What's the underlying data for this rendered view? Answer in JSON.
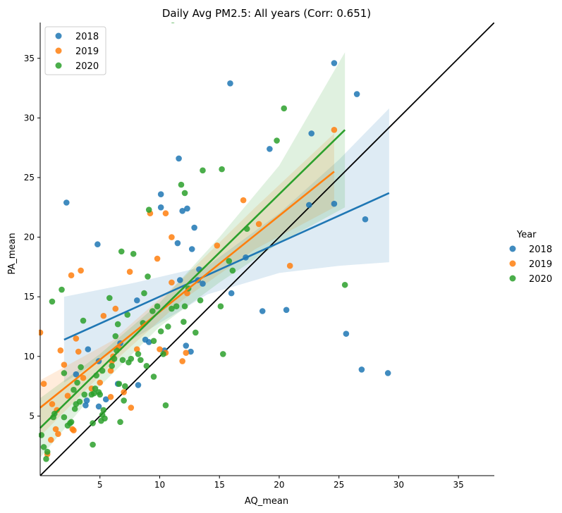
{
  "chart_data": {
    "type": "scatter",
    "title": "Daily Avg PM2.5: All years (Corr: 0.651)",
    "xlabel": "AQ_mean",
    "ylabel": "PA_mean",
    "xlim": [
      0,
      38
    ],
    "ylim": [
      0,
      38
    ],
    "xticks": [
      5,
      10,
      15,
      20,
      25,
      30,
      35
    ],
    "yticks": [
      5,
      10,
      15,
      20,
      25,
      30,
      35
    ],
    "grid": false,
    "legend_title": "Year",
    "legend_outer_placement": "right",
    "legend_inner_placement": "top-left",
    "reference_line": {
      "type": "identity",
      "color": "#000000",
      "points": [
        [
          0,
          0
        ],
        [
          38,
          38
        ]
      ]
    },
    "series": [
      {
        "name": "2018",
        "color": "#1f77b4",
        "points": [
          [
            2.2,
            22.9
          ],
          [
            4.8,
            19.4
          ],
          [
            4.0,
            10.6
          ],
          [
            3.9,
            6.3
          ],
          [
            3.8,
            5.9
          ],
          [
            4.9,
            5.8
          ],
          [
            5.5,
            6.4
          ],
          [
            3.0,
            8.5
          ],
          [
            4.9,
            9.6
          ],
          [
            6.7,
            11.1
          ],
          [
            6.5,
            7.7
          ],
          [
            8.1,
            14.7
          ],
          [
            8.2,
            7.6
          ],
          [
            8.8,
            11.4
          ],
          [
            9.1,
            11.2
          ],
          [
            10.1,
            22.5
          ],
          [
            10.1,
            23.6
          ],
          [
            10.4,
            10.5
          ],
          [
            11.6,
            26.6
          ],
          [
            11.5,
            19.5
          ],
          [
            11.7,
            16.4
          ],
          [
            11.9,
            22.2
          ],
          [
            12.3,
            22.4
          ],
          [
            12.2,
            10.9
          ],
          [
            12.6,
            10.4
          ],
          [
            12.7,
            19.0
          ],
          [
            12.9,
            20.8
          ],
          [
            13.2,
            16.4
          ],
          [
            13.3,
            17.3
          ],
          [
            13.6,
            16.1
          ],
          [
            15.9,
            32.9
          ],
          [
            16.0,
            15.3
          ],
          [
            17.2,
            18.3
          ],
          [
            18.6,
            13.8
          ],
          [
            19.2,
            27.4
          ],
          [
            20.6,
            13.9
          ],
          [
            22.5,
            22.7
          ],
          [
            22.7,
            28.7
          ],
          [
            24.6,
            34.6
          ],
          [
            24.6,
            22.8
          ],
          [
            25.6,
            11.9
          ],
          [
            26.5,
            32.0
          ],
          [
            26.9,
            8.9
          ],
          [
            27.2,
            21.5
          ],
          [
            29.1,
            8.6
          ]
        ],
        "fit_line": [
          [
            2.0,
            11.4
          ],
          [
            29.2,
            23.7
          ]
        ],
        "ci_band": {
          "x": [
            2.0,
            8.0,
            14.0,
            20.0,
            25.0,
            29.2
          ],
          "lower": [
            7.8,
            11.6,
            15.2,
            17.0,
            17.6,
            17.9
          ],
          "upper": [
            15.0,
            16.2,
            17.6,
            22.0,
            26.5,
            30.8
          ]
        }
      },
      {
        "name": "2019",
        "color": "#ff7f0e",
        "points": [
          [
            0.0,
            12.0
          ],
          [
            0.3,
            7.7
          ],
          [
            0.6,
            1.8
          ],
          [
            0.9,
            3.0
          ],
          [
            1.0,
            6.0
          ],
          [
            1.3,
            3.9
          ],
          [
            1.4,
            5.5
          ],
          [
            1.5,
            3.5
          ],
          [
            1.7,
            10.5
          ],
          [
            2.0,
            9.3
          ],
          [
            2.3,
            6.7
          ],
          [
            2.6,
            16.8
          ],
          [
            2.7,
            3.9
          ],
          [
            2.8,
            3.8
          ],
          [
            3.0,
            11.5
          ],
          [
            3.2,
            10.4
          ],
          [
            3.4,
            17.2
          ],
          [
            3.6,
            8.2
          ],
          [
            4.3,
            7.3
          ],
          [
            5.0,
            7.8
          ],
          [
            5.3,
            13.4
          ],
          [
            5.9,
            6.6
          ],
          [
            5.9,
            8.8
          ],
          [
            6.0,
            9.6
          ],
          [
            6.1,
            10.0
          ],
          [
            6.3,
            14.0
          ],
          [
            6.6,
            10.7
          ],
          [
            7.0,
            7.0
          ],
          [
            7.5,
            17.1
          ],
          [
            7.6,
            5.7
          ],
          [
            8.1,
            10.6
          ],
          [
            9.2,
            22.0
          ],
          [
            9.8,
            18.2
          ],
          [
            10.0,
            10.6
          ],
          [
            10.5,
            22.0
          ],
          [
            10.5,
            10.3
          ],
          [
            11.0,
            20.0
          ],
          [
            11.0,
            16.2
          ],
          [
            11.9,
            9.6
          ],
          [
            12.2,
            10.3
          ],
          [
            12.3,
            15.3
          ],
          [
            14.8,
            19.3
          ],
          [
            17.0,
            23.1
          ],
          [
            18.3,
            21.1
          ],
          [
            20.9,
            17.6
          ],
          [
            24.6,
            29.0
          ]
        ],
        "fit_line": [
          [
            0.0,
            5.7
          ],
          [
            24.6,
            25.5
          ]
        ],
        "ci_band": {
          "x": [
            0.0,
            6.0,
            12.0,
            18.0,
            24.6
          ],
          "lower": [
            3.3,
            9.4,
            14.8,
            19.0,
            22.5
          ],
          "upper": [
            8.0,
            11.3,
            16.6,
            22.5,
            28.7
          ]
        }
      },
      {
        "name": "2020",
        "color": "#2ca02c",
        "points": [
          [
            0.1,
            3.4
          ],
          [
            0.3,
            2.4
          ],
          [
            0.5,
            1.4
          ],
          [
            0.6,
            2.0
          ],
          [
            1.0,
            14.6
          ],
          [
            1.1,
            4.9
          ],
          [
            1.2,
            5.2
          ],
          [
            1.8,
            15.6
          ],
          [
            2.0,
            8.6
          ],
          [
            2.0,
            4.9
          ],
          [
            2.3,
            4.2
          ],
          [
            2.5,
            4.4
          ],
          [
            2.6,
            4.5
          ],
          [
            2.8,
            7.2
          ],
          [
            2.9,
            5.6
          ],
          [
            3.0,
            6.0
          ],
          [
            3.1,
            7.8
          ],
          [
            3.3,
            6.2
          ],
          [
            3.4,
            9.1
          ],
          [
            3.6,
            13.0
          ],
          [
            3.7,
            6.8
          ],
          [
            4.3,
            6.8
          ],
          [
            4.4,
            4.4
          ],
          [
            4.4,
            2.6
          ],
          [
            4.5,
            6.9
          ],
          [
            4.6,
            7.3
          ],
          [
            4.7,
            8.4
          ],
          [
            4.9,
            7.0
          ],
          [
            5.0,
            6.8
          ],
          [
            5.1,
            4.6
          ],
          [
            5.2,
            8.8
          ],
          [
            5.2,
            5.1
          ],
          [
            5.3,
            5.5
          ],
          [
            5.4,
            4.8
          ],
          [
            5.8,
            14.9
          ],
          [
            6.0,
            9.2
          ],
          [
            6.2,
            9.8
          ],
          [
            6.3,
            11.7
          ],
          [
            6.4,
            10.5
          ],
          [
            6.5,
            12.7
          ],
          [
            6.6,
            7.7
          ],
          [
            6.7,
            4.5
          ],
          [
            6.8,
            18.8
          ],
          [
            6.9,
            9.7
          ],
          [
            7.0,
            6.3
          ],
          [
            7.1,
            7.5
          ],
          [
            7.3,
            13.5
          ],
          [
            7.4,
            9.5
          ],
          [
            7.6,
            9.8
          ],
          [
            7.8,
            18.6
          ],
          [
            8.2,
            10.2
          ],
          [
            8.4,
            9.7
          ],
          [
            8.6,
            12.8
          ],
          [
            8.7,
            15.3
          ],
          [
            8.9,
            9.2
          ],
          [
            9.0,
            16.7
          ],
          [
            9.1,
            22.3
          ],
          [
            9.4,
            13.8
          ],
          [
            9.5,
            8.3
          ],
          [
            9.5,
            11.3
          ],
          [
            9.8,
            14.2
          ],
          [
            10.1,
            12.1
          ],
          [
            10.3,
            10.2
          ],
          [
            10.5,
            5.9
          ],
          [
            10.7,
            12.5
          ],
          [
            11.0,
            14.0
          ],
          [
            11.1,
            38.2
          ],
          [
            11.4,
            14.2
          ],
          [
            11.8,
            24.4
          ],
          [
            12.0,
            12.9
          ],
          [
            12.1,
            14.2
          ],
          [
            12.1,
            23.7
          ],
          [
            12.4,
            15.7
          ],
          [
            13.0,
            12.0
          ],
          [
            13.4,
            14.7
          ],
          [
            13.6,
            25.6
          ],
          [
            15.1,
            14.2
          ],
          [
            15.2,
            25.7
          ],
          [
            15.3,
            10.2
          ],
          [
            15.8,
            18.0
          ],
          [
            16.1,
            17.2
          ],
          [
            17.3,
            20.7
          ],
          [
            19.8,
            28.1
          ],
          [
            20.4,
            30.8
          ],
          [
            25.5,
            16.0
          ]
        ],
        "fit_line": [
          [
            0.0,
            4.0
          ],
          [
            25.5,
            29.0
          ]
        ],
        "ci_band": {
          "x": [
            0.0,
            5.0,
            10.0,
            15.0,
            20.0,
            25.5
          ],
          "lower": [
            1.5,
            7.5,
            12.5,
            16.2,
            19.5,
            22.5
          ],
          "upper": [
            6.5,
            10.2,
            14.5,
            20.0,
            26.0,
            35.5
          ]
        }
      }
    ]
  }
}
